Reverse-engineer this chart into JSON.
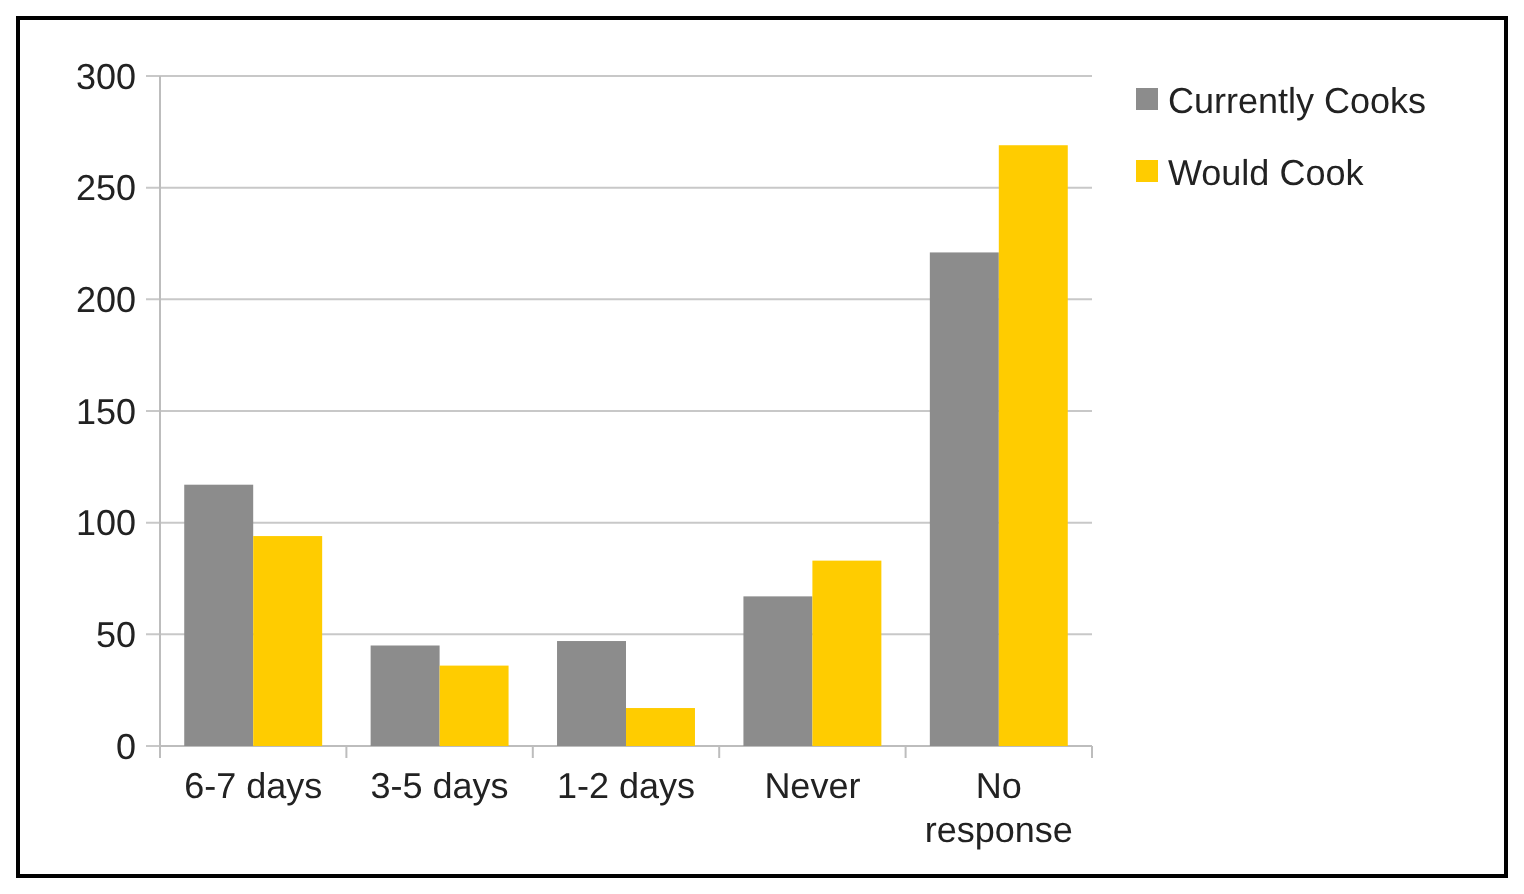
{
  "chart_data": {
    "type": "bar",
    "categories": [
      "6-7 days",
      "3-5 days",
      "1-2 days",
      "Never",
      "No response"
    ],
    "series": [
      {
        "name": "Currently Cooks",
        "color": "#8c8c8c",
        "values": [
          117,
          45,
          47,
          67,
          221
        ]
      },
      {
        "name": "Would Cook",
        "color": "#ffcc00",
        "values": [
          94,
          36,
          17,
          83,
          269
        ]
      }
    ],
    "ylim": [
      0,
      300
    ],
    "yticks": [
      0,
      50,
      100,
      150,
      200,
      250,
      300
    ],
    "grid": "y",
    "legend": "top right"
  }
}
